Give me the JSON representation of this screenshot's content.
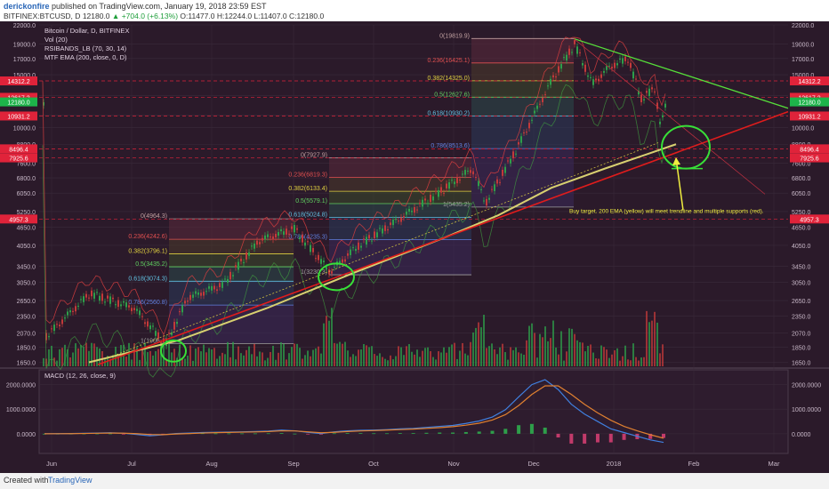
{
  "header": {
    "author": "derickonfire",
    "published": "published on TradingView.com, January 19, 2018 23:59 EST",
    "symbol_line_prefix": "BITFINEX:BTCUSD, D",
    "last": "12180.0",
    "change": "▲ +704.0 (+6.13%)",
    "ohlc": "O:11477.0 H:12244.0 L:11407.0 C:12180.0"
  },
  "legend": {
    "title": "Bitcoin / Dollar, D, BITFINEX",
    "vol": "Vol (20)",
    "rsi": "RSIBANDS_LB (70, 30, 14)",
    "ema": "MTF EMA (200, close, 0, D)"
  },
  "macd_label": "MACD (12, 26, close, 9)",
  "annotation": "Buy target. 200 EMA (yellow) will meet trendline and multiple supports (red).",
  "footer": {
    "created": "Created with",
    "brand": "TradingView"
  },
  "colors": {
    "bg": "#2b1a2a",
    "up": "#2e9e4a",
    "down": "#c23a3a",
    "ema": "#d8d070",
    "trend": "#e01c1c",
    "green_line": "#56e03a",
    "circle": "#38e038",
    "arrow": "#f0ee40",
    "last_price": "#1db34a",
    "level": "#e0233a"
  },
  "chart_data": {
    "type": "candlestick",
    "y_scale": "log",
    "ylim": [
      1600,
      22000
    ],
    "y_ticks": [
      1650,
      1850,
      2070,
      2350,
      2650,
      3050,
      3450,
      4050,
      4650,
      5250,
      6050,
      6800,
      7600,
      8800,
      10000,
      11000,
      12800,
      15000,
      17000,
      19000,
      22000
    ],
    "x_labels": [
      "Jun",
      "Jul",
      "Aug",
      "Sep",
      "Oct",
      "Nov",
      "Dec",
      "2018",
      "Feb",
      "Mar"
    ],
    "price_labels_left": [
      "14312.2",
      "12617.2",
      "12180.0",
      "10931.2",
      "8496.4",
      "7925.6",
      "4957.3"
    ],
    "price_labels_right": [
      "14312.2",
      "12617.2",
      "12180.0",
      "10931.2",
      "8496.4",
      "7925.6",
      "4957.3"
    ],
    "fib_sets": [
      {
        "levels": [
          {
            "label": "0(4964.3)",
            "price": 4964.3,
            "color": "#c0a0a0"
          },
          {
            "label": "0.236(4242.6)",
            "price": 4242.6,
            "color": "#e05050"
          },
          {
            "label": "0.382(3796.1)",
            "price": 3796.1,
            "color": "#e0d040"
          },
          {
            "label": "0.5(3435.2)",
            "price": 3435.2,
            "color": "#60d060"
          },
          {
            "label": "0.618(3074.3)",
            "price": 3074.3,
            "color": "#60c0e0"
          },
          {
            "label": "0.786(2560.8)",
            "price": 2560.8,
            "color": "#6080e0"
          },
          {
            "label": "1(1906.1)",
            "price": 1906.1,
            "color": "#a0a0a0"
          }
        ]
      },
      {
        "levels": [
          {
            "label": "0(7927.9)",
            "price": 7927.9,
            "color": "#c0a0a0"
          },
          {
            "label": "0.236(6819.3)",
            "price": 6819.3,
            "color": "#e05050"
          },
          {
            "label": "0.382(6133.4)",
            "price": 6133.4,
            "color": "#e0d040"
          },
          {
            "label": "0.5(5579.1)",
            "price": 5579.1,
            "color": "#60d060"
          },
          {
            "label": "0.618(5024.8)",
            "price": 5024.8,
            "color": "#60c0e0"
          },
          {
            "label": "0.786(4235.3)",
            "price": 4235.3,
            "color": "#6080e0"
          },
          {
            "label": "1(3230.3)",
            "price": 3230.3,
            "color": "#a0a0a0"
          }
        ]
      },
      {
        "levels": [
          {
            "label": "0(19819.9)",
            "price": 19819.9,
            "color": "#c0a0a0"
          },
          {
            "label": "0.236(16425.1)",
            "price": 16425.1,
            "color": "#e05050"
          },
          {
            "label": "0.382(14325.0)",
            "price": 14325.0,
            "color": "#e0d040"
          },
          {
            "label": "0.5(12627.6)",
            "price": 12627.6,
            "color": "#60d060"
          },
          {
            "label": "0.618(10930.2)",
            "price": 10930.2,
            "color": "#60c0e0"
          },
          {
            "label": "0.786(8513.6)",
            "price": 8513.6,
            "color": "#6080e0"
          },
          {
            "label": "1(5435.2)",
            "price": 5435.2,
            "color": "#a0a0a0"
          }
        ]
      }
    ],
    "macd_ticks": [
      "2000.0000",
      "1000.0000",
      "0.0000"
    ],
    "macd_ylim": [
      -800,
      2600
    ],
    "macd_line": [
      0,
      5,
      10,
      20,
      30,
      40,
      20,
      -30,
      -80,
      -40,
      10,
      30,
      50,
      60,
      70,
      80,
      90,
      110,
      150,
      120,
      60,
      10,
      80,
      120,
      140,
      150,
      170,
      200,
      220,
      260,
      300,
      340,
      420,
      520,
      680,
      980,
      1500,
      2000,
      2200,
      1800,
      1200,
      800,
      500,
      200,
      50,
      -100,
      -250,
      -350
    ],
    "signal_line": [
      0,
      3,
      6,
      12,
      20,
      28,
      24,
      5,
      -30,
      -35,
      -10,
      10,
      30,
      45,
      55,
      65,
      75,
      90,
      120,
      115,
      80,
      40,
      60,
      90,
      115,
      130,
      150,
      170,
      190,
      220,
      250,
      290,
      350,
      430,
      560,
      780,
      1150,
      1600,
      1950,
      1950,
      1600,
      1200,
      850,
      550,
      300,
      120,
      -40,
      -180
    ]
  }
}
